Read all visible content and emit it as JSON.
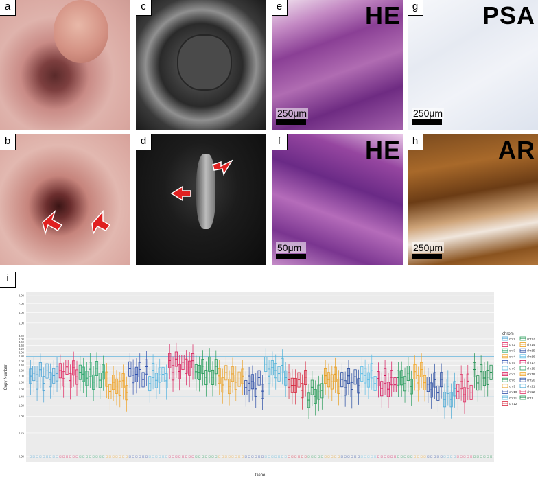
{
  "panels": {
    "a": {
      "label": "a"
    },
    "b": {
      "label": "b"
    },
    "c": {
      "label": "c"
    },
    "d": {
      "label": "d"
    },
    "e": {
      "label": "e",
      "stain": "HE",
      "scale": "250μm"
    },
    "f": {
      "label": "f",
      "stain": "HE",
      "scale": "50μm"
    },
    "g": {
      "label": "g",
      "stain": "PSA",
      "scale": "250μm"
    },
    "h": {
      "label": "h",
      "stain": "AR",
      "scale": "250μm"
    },
    "i": {
      "label": "i"
    }
  },
  "chart_data": {
    "type": "box",
    "xlabel": "Gene",
    "ylabel": "Copy Number",
    "y_scale": "log",
    "ylim": [
      0.45,
      8.5
    ],
    "y_ticks": [
      "0.50",
      "0.75",
      "1.00",
      "1.20",
      "1.40",
      "1.60",
      "1.80",
      "2.00",
      "2.20",
      "2.40",
      "2.60",
      "2.80",
      "3.00",
      "3.20",
      "3.40",
      "3.60",
      "3.80",
      "4.00",
      "5.00",
      "6.00",
      "7.00",
      "8.00"
    ],
    "legend_title": "chrom",
    "legend": [
      "chr1",
      "chr2",
      "chr3",
      "chr4",
      "chr5",
      "chr6",
      "chr7",
      "chr8",
      "chr9",
      "chr10",
      "chr11",
      "chr12",
      "chr13",
      "chr14",
      "chr15",
      "chr16",
      "chr17",
      "chr18",
      "chr19",
      "chr20",
      "chr21",
      "chr22",
      "chrX"
    ],
    "legend_placement": "right",
    "gridlines": "on",
    "reference_lines": [
      1.4,
      2.8
    ]
  },
  "colors": {
    "chr1": "#4aa3d6",
    "chr2": "#e0245e",
    "chr3": "#2aa56b",
    "chr4": "#f0a020",
    "chr5": "#3052b0",
    "chr6": "#55b4e0",
    "chr7": "#d81e5b",
    "chr8": "#1f9a55",
    "chr9": "#eba532",
    "chr10": "#2b4ca6",
    "chr11": "#4fb2d9",
    "chr12": "#d7263d",
    "chr13": "#2d9e5c",
    "chr14": "#e89c1a",
    "chr15": "#244aa0",
    "chr16": "#5cbde6",
    "chr17": "#d4145a",
    "chr18": "#239a5a",
    "chr19": "#f2a72a",
    "chr20": "#2c4fa3",
    "chr21": "#49a8d4",
    "chr22": "#de3163",
    "chrX": "#1e8f4e"
  }
}
